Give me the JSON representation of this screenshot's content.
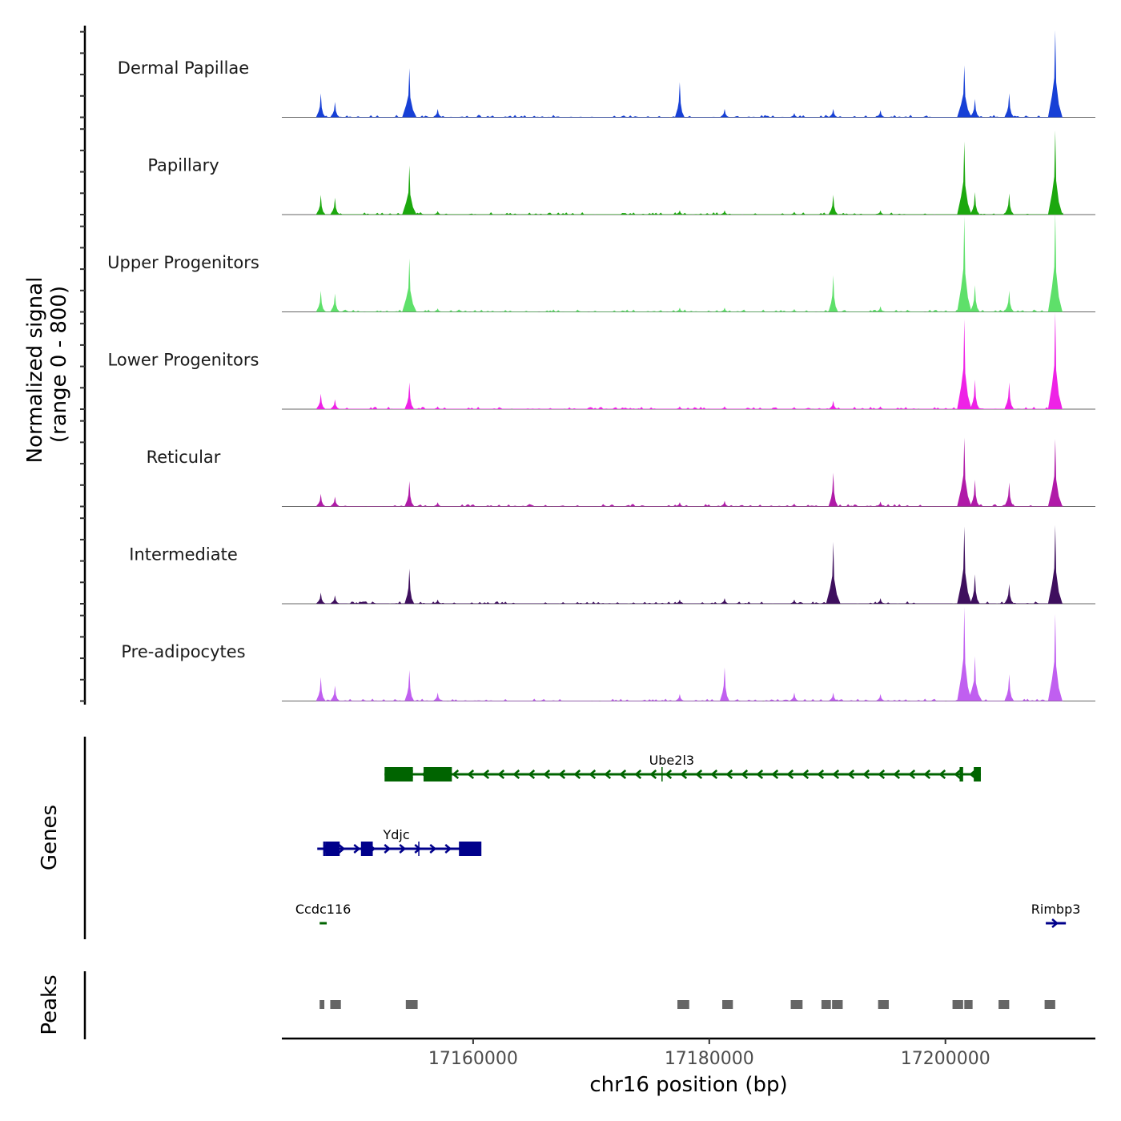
{
  "chart_data": {
    "type": "area",
    "title": "",
    "ylabel_signal": "Normalized signal",
    "ylabel_signal_sub": "(range 0 - 800)",
    "ylabel_genes": "Genes",
    "ylabel_peaks": "Peaks",
    "xlabel": "chr16 position (bp)",
    "xlim": [
      17143800,
      17212700
    ],
    "ylim": [
      0,
      800
    ],
    "x_ticks": [
      17160000,
      17180000,
      17200000
    ],
    "x_tick_labels": [
      "17160000",
      "17180000",
      "17200000"
    ],
    "grid": false,
    "legend": "none",
    "tracks": [
      {
        "name": "Dermal Papillae",
        "color": "#1740d6"
      },
      {
        "name": "Papillary",
        "color": "#1ca80e"
      },
      {
        "name": "Upper Progenitors",
        "color": "#5ee06a"
      },
      {
        "name": "Lower Progenitors",
        "color": "#ee22e6"
      },
      {
        "name": "Reticular",
        "color": "#b01aa8"
      },
      {
        "name": "Intermediate",
        "color": "#3e0f5e"
      },
      {
        "name": "Pre-adipocytes",
        "color": "#c05ff0"
      }
    ],
    "peak_positions": [
      17147100,
      17148300,
      17154600,
      17157000,
      17177500,
      17181300,
      17187200,
      17190500,
      17194500,
      17201600,
      17202500,
      17205400,
      17209300
    ],
    "signal": [
      [
        170,
        110,
        350,
        60,
        250,
        60,
        30,
        60,
        50,
        370,
        130,
        170,
        620
      ],
      [
        140,
        120,
        350,
        25,
        30,
        30,
        20,
        140,
        30,
        520,
        160,
        150,
        600
      ],
      [
        150,
        130,
        380,
        25,
        30,
        30,
        20,
        260,
        40,
        680,
        190,
        150,
        710
      ],
      [
        110,
        70,
        190,
        20,
        20,
        20,
        15,
        60,
        20,
        640,
        210,
        190,
        690
      ],
      [
        90,
        70,
        180,
        30,
        30,
        40,
        20,
        240,
        35,
        490,
        190,
        170,
        480
      ],
      [
        80,
        60,
        250,
        30,
        30,
        40,
        30,
        440,
        40,
        550,
        210,
        140,
        560
      ],
      [
        170,
        110,
        220,
        60,
        50,
        240,
        60,
        60,
        50,
        670,
        320,
        190,
        620
      ]
    ],
    "genes": [
      {
        "name": "Ube2l3",
        "strand": "-",
        "color": "#006400",
        "row": 0,
        "start": 17152500,
        "end": 17203000,
        "exons": [
          [
            17152500,
            17154900
          ],
          [
            17155800,
            17158200
          ],
          [
            17201200,
            17201500
          ],
          [
            17202400,
            17203000
          ]
        ],
        "tss_mark": 17176000
      },
      {
        "name": "Ydjc",
        "strand": "+",
        "color": "#00008b",
        "row": 1,
        "start": 17146800,
        "end": 17160500,
        "exons": [
          [
            17147300,
            17147500
          ],
          [
            17147500,
            17148700
          ],
          [
            17150500,
            17151500
          ],
          [
            17158800,
            17160700
          ]
        ],
        "tss_mark": 17155400
      },
      {
        "name": "Ccdc116",
        "strand": "-",
        "color": "#006400",
        "row": 2,
        "start": 17147000,
        "end": 17147600,
        "exons": []
      },
      {
        "name": "Rimbp3",
        "strand": "+",
        "color": "#00008b",
        "row": 2,
        "start": 17208500,
        "end": 17210200,
        "exons": []
      }
    ],
    "peaks": [
      [
        17147000,
        17147400
      ],
      [
        17147900,
        17148800
      ],
      [
        17154300,
        17155300
      ],
      [
        17177300,
        17178300
      ],
      [
        17181100,
        17182000
      ],
      [
        17186900,
        17187900
      ],
      [
        17189500,
        17190300
      ],
      [
        17190400,
        17191300
      ],
      [
        17194300,
        17195200
      ],
      [
        17200600,
        17201500
      ],
      [
        17201600,
        17202300
      ],
      [
        17204500,
        17205400
      ],
      [
        17208400,
        17209300
      ]
    ],
    "peak_color": "#666666"
  }
}
